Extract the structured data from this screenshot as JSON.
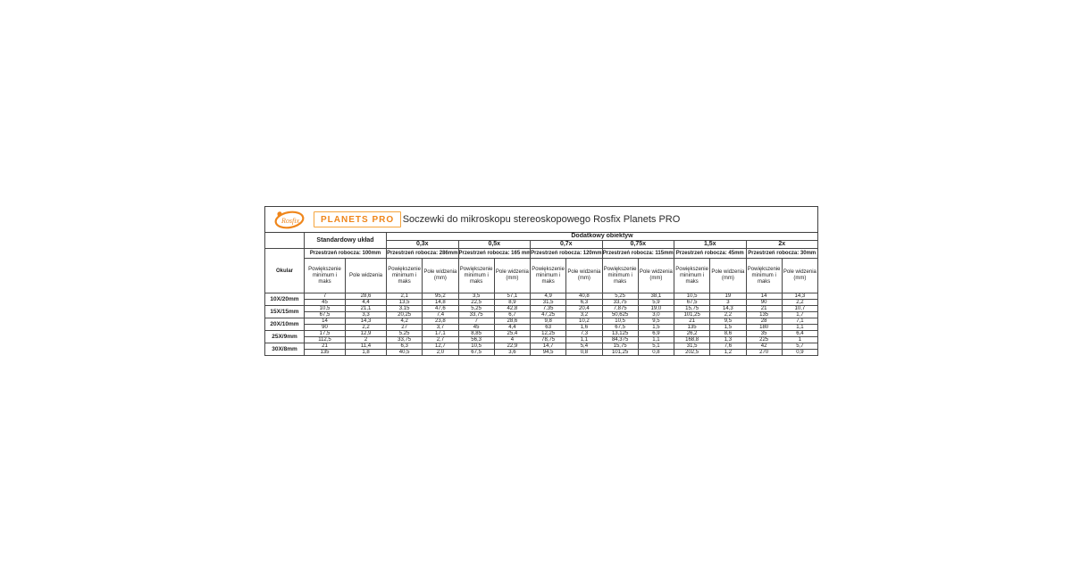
{
  "page": {
    "accent": "#EF861B",
    "background": "#ffffff"
  },
  "header": {
    "logo_text": "Rosfix",
    "brand": "PLANETS PRO",
    "title": "Soczewki do mikroskopu stereoskopowego Rosfix Planets PRO"
  },
  "table": {
    "okular_header": "Okular",
    "groups": {
      "standard": "Standardowy układ",
      "additional": "Dodatkowy obiektyw"
    },
    "columns": [
      {
        "zoom": "",
        "work": "Przestrzeń robocza: 100mm",
        "mag": "Powiększenie minimum i maks",
        "fov": "Pole widzenia"
      },
      {
        "zoom": "0,3x",
        "work": "Przestrzeń robocza: 286mm",
        "mag": "Powiększenie minimum i maks",
        "fov": "Pole widzenia (mm)"
      },
      {
        "zoom": "0,5x",
        "work": "Przestrzeń robocza: 165 mm",
        "mag": "Powiększenie minimum i maks",
        "fov": "Pole widzenia (mm)"
      },
      {
        "zoom": "0,7x",
        "work": "Przestrzeń robocza: 120mm",
        "mag": "Powiększenie minimum i maks",
        "fov": "Pole widzenia (mm)"
      },
      {
        "zoom": "0,75x",
        "work": "Przestrzeń robocza: 115mm",
        "mag": "Powiększenie minimum i maks",
        "fov": "Pole widzenia (mm)"
      },
      {
        "zoom": "1,5x",
        "work": "Przestrzeń robocza: 45mm",
        "mag": "Powiększenie minimum i maks",
        "fov": "Pole widzenia (mm)"
      },
      {
        "zoom": "2x",
        "work": "Przestrzeń robocza: 30mm",
        "mag": "Powiększenie minimum i maks",
        "fov": "Pole widzenia (mm)"
      }
    ],
    "rows": [
      {
        "okular": "10X/20mm",
        "min": [
          "7",
          "28,6",
          "2,1",
          "95,2",
          "3,5",
          "57,1",
          "4,9",
          "40,8",
          "5,25",
          "38,1",
          "10,5",
          "19",
          "14",
          "14,3"
        ],
        "max": [
          "45",
          "4,4",
          "13,5",
          "14,8",
          "22,5",
          "8,9",
          "31,5",
          "6,3",
          "33,75",
          "5,9",
          "67,5",
          "3",
          "90",
          "2,2"
        ]
      },
      {
        "okular": "15X/15mm",
        "min": [
          "10,5",
          "21,1",
          "3,15",
          "47,6",
          "5,25",
          "42,8",
          "7,35",
          "20,4",
          "7,875",
          "19,0",
          "15,75",
          "14,3",
          "21",
          "10,7"
        ],
        "max": [
          "67,5",
          "3,3",
          "20,25",
          "7,4",
          "33,75",
          "6,7",
          "47,25",
          "3,2",
          "50,625",
          "3,0",
          "101,25",
          "2,2",
          "135",
          "1,7"
        ]
      },
      {
        "okular": "20X/10mm",
        "min": [
          "14",
          "14,3",
          "4,2",
          "23,8",
          "7",
          "28,6",
          "9,8",
          "10,2",
          "10,5",
          "9,5",
          "21",
          "9,5",
          "28",
          "7,1"
        ],
        "max": [
          "90",
          "2,2",
          "27",
          "3,7",
          "45",
          "4,4",
          "63",
          "1,6",
          "67,5",
          "1,5",
          "135",
          "1,5",
          "180",
          "1,1"
        ]
      },
      {
        "okular": "25X/9mm",
        "min": [
          "17,5",
          "12,9",
          "5,25",
          "17,1",
          "8,85",
          "25,4",
          "12,25",
          "7,3",
          "13,125",
          "6,9",
          "26,2",
          "8,6",
          "35",
          "6,4"
        ],
        "max": [
          "112,5",
          "2",
          "33,75",
          "2,7",
          "56,3",
          "4",
          "78,75",
          "1,1",
          "84,375",
          "1,1",
          "168,8",
          "1,3",
          "225",
          "1"
        ]
      },
      {
        "okular": "30X/8mm",
        "min": [
          "21",
          "11,4",
          "6,3",
          "12,7",
          "10,5",
          "22,9",
          "14,7",
          "5,4",
          "15,75",
          "5,1",
          "31,5",
          "7,6",
          "42",
          "5,7"
        ],
        "max": [
          "135",
          "1,8",
          "40,5",
          "2,0",
          "67,5",
          "3,6",
          "94,5",
          "0,8",
          "101,25",
          "0,8",
          "202,5",
          "1,2",
          "270",
          "0,9"
        ]
      }
    ]
  }
}
